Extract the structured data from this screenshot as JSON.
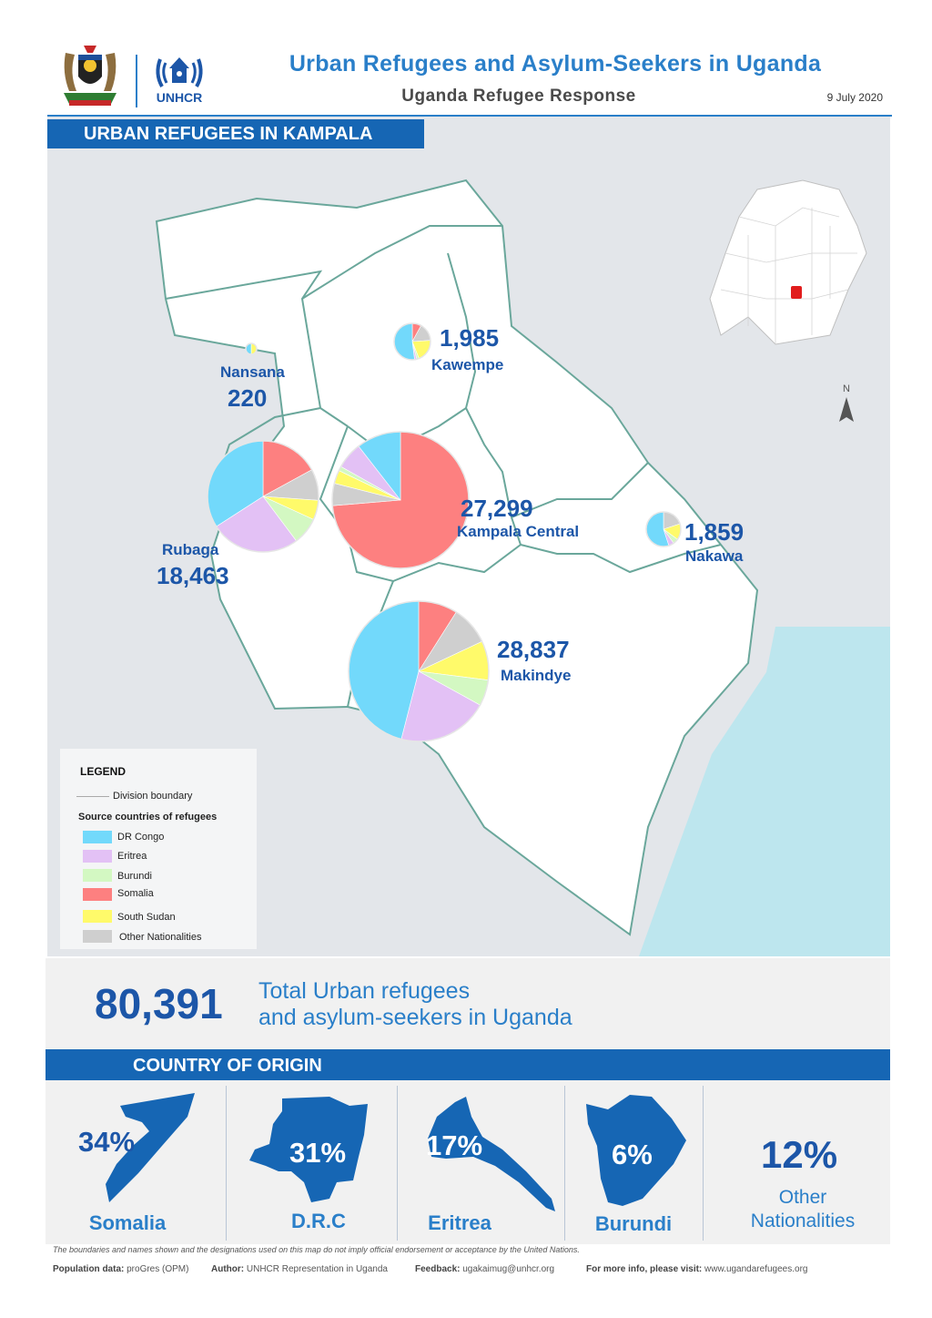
{
  "header": {
    "title": "Urban Refugees and Asylum-Seekers in Uganda",
    "subtitle": "Uganda Refugee Response",
    "date": "9 July 2020",
    "org_logo_text": "UNHCR"
  },
  "map": {
    "section_title": "URBAN REFUGEES IN KAMPALA",
    "north_label": "N",
    "divisions": [
      {
        "name": "Nansana",
        "total": "220",
        "shares": {
          "dr_congo": 50,
          "eritrea": 0,
          "burundi": 0,
          "somalia": 0,
          "south_sudan": 50,
          "other": 0
        }
      },
      {
        "name": "Kawempe",
        "total": "1,985",
        "shares": {
          "dr_congo": 52,
          "eritrea": 2,
          "burundi": 2,
          "somalia": 8,
          "south_sudan": 20,
          "other": 16
        }
      },
      {
        "name": "Rubaga",
        "total": "18,463",
        "shares": {
          "dr_congo": 30,
          "eritrea": 23,
          "burundi": 7,
          "somalia": 15,
          "south_sudan": 5,
          "other": 8
        }
      },
      {
        "name": "Kampala Central",
        "total": "27,299",
        "shares": {
          "dr_congo": 10,
          "eritrea": 6,
          "burundi": 1,
          "somalia": 70,
          "south_sudan": 3,
          "other": 5
        }
      },
      {
        "name": "Nakawa",
        "total": "1,859",
        "shares": {
          "dr_congo": 55,
          "eritrea": 5,
          "burundi": 5,
          "somalia": 0,
          "south_sudan": 15,
          "other": 20
        }
      },
      {
        "name": "Makindye",
        "total": "28,837",
        "shares": {
          "dr_congo": 46,
          "eritrea": 21,
          "burundi": 6,
          "somalia": 9,
          "south_sudan": 9,
          "other": 9
        }
      }
    ]
  },
  "legend": {
    "title": "LEGEND",
    "boundary_label": "Division boundary",
    "source_title": "Source countries of refugees",
    "items": [
      {
        "key": "dr_congo",
        "label": "DR Congo",
        "color": "#72d9fb"
      },
      {
        "key": "eritrea",
        "label": "Eritrea",
        "color": "#e3c1f5"
      },
      {
        "key": "burundi",
        "label": "Burundi",
        "color": "#d3f8c2"
      },
      {
        "key": "somalia",
        "label": "Somalia",
        "color": "#fd8080"
      },
      {
        "key": "south_sudan",
        "label": "South Sudan",
        "color": "#fffa6a"
      },
      {
        "key": "other",
        "label": "Other Nationalities",
        "color": "#cfcfcf"
      }
    ]
  },
  "summary": {
    "total": "80,391",
    "text_line1": "Total Urban refugees",
    "text_line2": "and asylum-seekers in Uganda"
  },
  "origin": {
    "title": "COUNTRY OF ORIGIN",
    "countries": [
      {
        "name": "Somalia",
        "percent": "34%"
      },
      {
        "name": "D.R.C",
        "percent": "31%"
      },
      {
        "name": "Eritrea",
        "percent": "17%"
      },
      {
        "name": "Burundi",
        "percent": "6%"
      },
      {
        "name": "Other\nNationalities",
        "percent": "12%"
      }
    ]
  },
  "footer": {
    "disclaimer": "The boundaries and names shown and the designations used on this map do not imply official endorsement or acceptance by the United Nations.",
    "population_label": "Population data:",
    "population_value": "proGres (OPM)",
    "author_label": "Author:",
    "author_value": "UNHCR Representation in Uganda",
    "feedback_label": "Feedback:",
    "feedback_value": "ugakaimug@unhcr.org",
    "info_label": "For more info, please visit:",
    "info_value": "www.ugandarefugees.org"
  }
}
